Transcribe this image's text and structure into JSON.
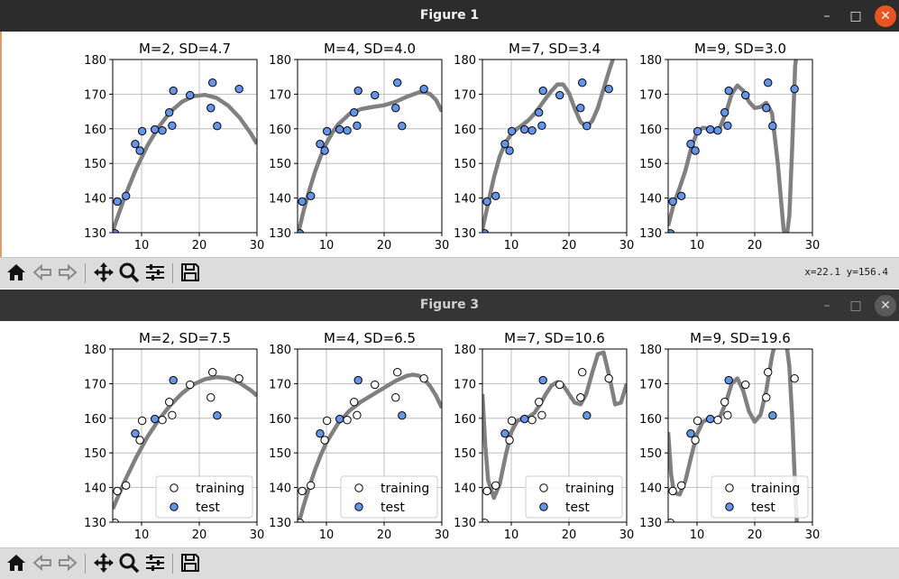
{
  "windows": [
    {
      "title": "Figure 1",
      "coord_readout": "x=22.1 y=156.4",
      "active": true
    },
    {
      "title": "Figure 3",
      "coord_readout": "",
      "active": false
    }
  ],
  "window_buttons": {
    "minimize": "–",
    "maximize": "□",
    "close": "✕"
  },
  "toolbar_icons": [
    "home-icon",
    "back-arrow-icon",
    "forward-arrow-icon",
    "pan-icon",
    "zoom-icon",
    "configure-icon",
    "save-icon"
  ],
  "colors": {
    "curve": "#808080",
    "test_fill": "#6495ED",
    "training_fill": "#ffffff",
    "marker_edge": "#000000",
    "grid": "#b0b0b0",
    "close_active": "#e95420"
  },
  "chart_data": [
    {
      "figure": 1,
      "panel": 1,
      "type": "scatter",
      "title": "M=2, SD=4.7",
      "xlim": [
        5,
        30
      ],
      "ylim": [
        130,
        180
      ],
      "xticks": [
        10,
        20,
        30
      ],
      "yticks": [
        130,
        140,
        150,
        160,
        170,
        180
      ],
      "grid": true,
      "legend": null,
      "series": [
        {
          "kind": "points",
          "style": "test",
          "x": [
            5.4,
            5.8,
            7.3,
            8.9,
            9.7,
            10.1,
            12.3,
            13.6,
            14.8,
            15.3,
            15.5,
            18.4,
            22.0,
            22.3,
            23.1,
            26.9
          ],
          "y": [
            129.8,
            139.0,
            140.6,
            155.6,
            153.7,
            159.3,
            159.8,
            159.5,
            164.7,
            160.9,
            171.0,
            169.7,
            166.0,
            173.3,
            160.8,
            171.5
          ]
        },
        {
          "kind": "curve",
          "x": [
            5,
            7,
            9,
            11,
            13,
            15,
            17,
            19,
            21,
            23,
            25,
            27,
            29,
            30
          ],
          "y": [
            130.5,
            140.0,
            148.2,
            155.1,
            160.6,
            164.9,
            167.8,
            169.4,
            169.8,
            168.9,
            166.7,
            163.2,
            158.5,
            155.6
          ]
        }
      ]
    },
    {
      "figure": 1,
      "panel": 2,
      "type": "scatter",
      "title": "M=4, SD=4.0",
      "xlim": [
        5,
        30
      ],
      "ylim": [
        130,
        180
      ],
      "xticks": [
        10,
        20,
        30
      ],
      "yticks": [
        130,
        140,
        150,
        160,
        170,
        180
      ],
      "grid": true,
      "legend": null,
      "series": [
        {
          "kind": "points",
          "style": "test",
          "x": [
            5.4,
            5.8,
            7.3,
            8.9,
            9.7,
            10.1,
            12.3,
            13.6,
            14.8,
            15.3,
            15.5,
            18.4,
            22.0,
            22.3,
            23.1,
            26.9
          ],
          "y": [
            129.8,
            139.0,
            140.6,
            155.6,
            153.7,
            159.3,
            159.8,
            159.5,
            164.7,
            160.9,
            171.0,
            169.7,
            166.0,
            173.3,
            160.8,
            171.5
          ]
        },
        {
          "kind": "curve",
          "x": [
            5,
            6,
            7,
            8,
            9,
            10,
            11,
            12,
            14,
            16,
            18,
            20,
            22,
            24,
            26,
            27,
            28,
            29,
            30
          ],
          "y": [
            129.0,
            136.0,
            142.0,
            147.5,
            152.0,
            155.8,
            158.8,
            161.2,
            164.3,
            165.7,
            166.3,
            166.8,
            167.8,
            169.3,
            170.5,
            170.6,
            170.0,
            168.3,
            165.0
          ]
        }
      ]
    },
    {
      "figure": 1,
      "panel": 3,
      "type": "scatter",
      "title": "M=7, SD=3.4",
      "xlim": [
        5,
        30
      ],
      "ylim": [
        130,
        180
      ],
      "xticks": [
        10,
        20,
        30
      ],
      "yticks": [
        130,
        140,
        150,
        160,
        170,
        180
      ],
      "grid": true,
      "legend": null,
      "series": [
        {
          "kind": "points",
          "style": "test",
          "x": [
            5.4,
            5.8,
            7.3,
            8.9,
            9.7,
            10.1,
            12.3,
            13.6,
            14.8,
            15.3,
            15.5,
            18.4,
            22.0,
            22.3,
            23.1,
            26.9
          ],
          "y": [
            129.8,
            139.0,
            140.6,
            155.6,
            153.7,
            159.3,
            159.8,
            159.5,
            164.7,
            160.9,
            171.0,
            169.7,
            166.0,
            173.3,
            160.8,
            171.5
          ]
        },
        {
          "kind": "curve",
          "x": [
            5,
            6,
            7,
            8,
            9,
            10,
            11,
            12,
            13,
            14,
            15,
            16,
            17,
            18,
            19,
            20,
            21,
            22,
            23,
            24,
            25,
            26,
            27,
            27.5,
            28
          ],
          "y": [
            131.0,
            138.5,
            146.0,
            152.0,
            156.0,
            158.5,
            160.0,
            161.2,
            162.5,
            164.3,
            166.5,
            168.8,
            171.0,
            172.8,
            172.8,
            170.3,
            165.8,
            162.0,
            160.6,
            162.2,
            166.0,
            171.5,
            177.0,
            179.5,
            182.0
          ]
        }
      ]
    },
    {
      "figure": 1,
      "panel": 4,
      "type": "scatter",
      "title": "M=9, SD=3.0",
      "xlim": [
        5,
        30
      ],
      "ylim": [
        130,
        180
      ],
      "xticks": [
        10,
        20,
        30
      ],
      "yticks": [
        130,
        140,
        150,
        160,
        170,
        180
      ],
      "grid": true,
      "legend": null,
      "series": [
        {
          "kind": "points",
          "style": "test",
          "x": [
            5.4,
            5.8,
            7.3,
            8.9,
            9.7,
            10.1,
            12.3,
            13.6,
            14.8,
            15.3,
            15.5,
            18.4,
            22.0,
            22.3,
            23.1,
            26.9
          ],
          "y": [
            129.8,
            139.0,
            140.6,
            155.6,
            153.7,
            159.3,
            159.8,
            159.5,
            164.7,
            160.9,
            171.0,
            169.7,
            166.0,
            173.3,
            160.8,
            171.5
          ]
        },
        {
          "kind": "curve",
          "x": [
            5,
            6,
            7,
            8,
            9,
            10,
            11,
            12,
            13,
            14,
            15,
            16,
            17,
            18,
            19,
            20,
            21,
            22,
            23,
            24,
            25,
            25.5,
            26,
            26.5,
            27,
            27.4
          ],
          "y": [
            132.0,
            138.5,
            143.0,
            148.0,
            154.5,
            159.0,
            160.3,
            160.0,
            159.3,
            160.5,
            164.5,
            170.0,
            172.5,
            171.0,
            167.8,
            166.0,
            166.3,
            167.5,
            164.5,
            150.0,
            131.0,
            128.0,
            135.0,
            155.0,
            178.0,
            184.0
          ]
        }
      ]
    },
    {
      "figure": 3,
      "panel": 1,
      "type": "scatter",
      "title": "M=2, SD=7.5",
      "xlim": [
        5,
        30
      ],
      "ylim": [
        130,
        180
      ],
      "xticks": [
        10,
        20,
        30
      ],
      "yticks": [
        130,
        140,
        150,
        160,
        170,
        180
      ],
      "grid": true,
      "legend": "lower-right",
      "series": [
        {
          "kind": "points",
          "style": "training",
          "name": "training",
          "x": [
            5.4,
            5.8,
            7.3,
            9.7,
            10.1,
            13.6,
            14.8,
            15.3,
            18.4,
            22.0,
            22.3,
            26.9
          ],
          "y": [
            129.8,
            139.0,
            140.6,
            153.7,
            159.3,
            159.5,
            164.7,
            160.9,
            169.7,
            166.0,
            173.3,
            171.5
          ]
        },
        {
          "kind": "points",
          "style": "test",
          "name": "test",
          "x": [
            8.9,
            12.3,
            15.5,
            23.1
          ],
          "y": [
            155.6,
            159.8,
            171.0,
            160.8
          ]
        },
        {
          "kind": "curve",
          "x": [
            5,
            7,
            9,
            11,
            13,
            15,
            17,
            19,
            21,
            23,
            25,
            27,
            29,
            30
          ],
          "y": [
            133.8,
            141.6,
            148.5,
            154.6,
            159.6,
            163.8,
            167.2,
            169.8,
            171.3,
            171.9,
            171.6,
            170.2,
            168.0,
            166.5
          ]
        }
      ]
    },
    {
      "figure": 3,
      "panel": 2,
      "type": "scatter",
      "title": "M=4, SD=6.5",
      "xlim": [
        5,
        30
      ],
      "ylim": [
        130,
        180
      ],
      "xticks": [
        10,
        20,
        30
      ],
      "yticks": [
        130,
        140,
        150,
        160,
        170,
        180
      ],
      "grid": true,
      "legend": "lower-right",
      "series": [
        {
          "kind": "points",
          "style": "training",
          "name": "training",
          "x": [
            5.4,
            5.8,
            7.3,
            9.7,
            10.1,
            13.6,
            14.8,
            15.3,
            18.4,
            22.0,
            22.3,
            26.9
          ],
          "y": [
            129.8,
            139.0,
            140.6,
            153.7,
            159.3,
            159.5,
            164.7,
            160.9,
            169.7,
            166.0,
            173.3,
            171.5
          ]
        },
        {
          "kind": "points",
          "style": "test",
          "name": "test",
          "x": [
            8.9,
            12.3,
            15.5,
            23.1
          ],
          "y": [
            155.6,
            159.8,
            171.0,
            160.8
          ]
        },
        {
          "kind": "curve",
          "x": [
            5,
            6,
            7,
            8,
            9,
            10,
            12,
            14,
            16,
            18,
            20,
            22,
            24,
            25,
            26,
            27,
            28,
            29,
            30
          ],
          "y": [
            128.5,
            134.5,
            140.0,
            145.0,
            149.3,
            153.0,
            158.5,
            162.2,
            164.8,
            166.8,
            168.8,
            170.8,
            172.3,
            172.6,
            172.3,
            171.2,
            169.2,
            166.5,
            163.0
          ]
        }
      ]
    },
    {
      "figure": 3,
      "panel": 3,
      "type": "scatter",
      "title": "M=7, SD=10.6",
      "xlim": [
        5,
        30
      ],
      "ylim": [
        130,
        180
      ],
      "xticks": [
        10,
        20,
        30
      ],
      "yticks": [
        130,
        140,
        150,
        160,
        170,
        180
      ],
      "grid": true,
      "legend": "lower-right",
      "series": [
        {
          "kind": "points",
          "style": "training",
          "name": "training",
          "x": [
            5.4,
            5.8,
            7.3,
            9.7,
            10.1,
            13.6,
            14.8,
            15.3,
            18.4,
            22.0,
            22.3,
            26.9
          ],
          "y": [
            129.8,
            139.0,
            140.6,
            153.7,
            159.3,
            159.5,
            164.7,
            160.9,
            169.7,
            166.0,
            173.3,
            171.5
          ]
        },
        {
          "kind": "points",
          "style": "test",
          "name": "test",
          "x": [
            8.9,
            12.3,
            15.5,
            23.1
          ],
          "y": [
            155.6,
            159.8,
            171.0,
            160.8
          ]
        },
        {
          "kind": "curve",
          "x": [
            5,
            5.5,
            6,
            7,
            8,
            9,
            10,
            11,
            12,
            13,
            14,
            15,
            16,
            17,
            18,
            19,
            20,
            21,
            22,
            23,
            24,
            25,
            26,
            27,
            28,
            29,
            30
          ],
          "y": [
            167.0,
            152.0,
            142.0,
            137.0,
            141.0,
            149.0,
            156.0,
            159.2,
            160.0,
            160.3,
            161.5,
            164.0,
            167.0,
            169.5,
            170.5,
            169.5,
            167.0,
            164.5,
            164.0,
            167.0,
            173.0,
            178.5,
            179.0,
            172.0,
            164.0,
            164.5,
            170.0
          ]
        }
      ]
    },
    {
      "figure": 3,
      "panel": 4,
      "type": "scatter",
      "title": "M=9, SD=19.6",
      "xlim": [
        5,
        30
      ],
      "ylim": [
        130,
        180
      ],
      "xticks": [
        10,
        20,
        30
      ],
      "yticks": [
        130,
        140,
        150,
        160,
        170,
        180
      ],
      "grid": true,
      "legend": "lower-right",
      "series": [
        {
          "kind": "points",
          "style": "training",
          "name": "training",
          "x": [
            5.4,
            5.8,
            7.3,
            9.7,
            10.1,
            13.6,
            14.8,
            15.3,
            18.4,
            22.0,
            22.3,
            26.9
          ],
          "y": [
            129.8,
            139.0,
            140.6,
            153.7,
            159.3,
            159.5,
            164.7,
            160.9,
            169.7,
            166.0,
            173.3,
            171.5
          ]
        },
        {
          "kind": "points",
          "style": "test",
          "name": "test",
          "x": [
            8.9,
            12.3,
            15.5,
            23.1
          ],
          "y": [
            155.6,
            159.8,
            171.0,
            160.8
          ]
        },
        {
          "kind": "curve",
          "x": [
            5,
            5.5,
            6,
            7,
            8,
            9,
            10,
            11,
            12,
            13,
            14,
            15,
            16,
            17,
            18,
            19,
            20,
            21,
            22,
            23,
            24,
            25,
            26,
            26.5,
            27,
            27.3,
            27.5
          ],
          "y": [
            156.0,
            144.0,
            138.5,
            138.0,
            142.0,
            149.0,
            155.5,
            159.0,
            159.8,
            159.5,
            160.5,
            164.5,
            170.0,
            171.5,
            168.0,
            162.0,
            159.0,
            161.0,
            168.0,
            178.0,
            185.0,
            188.0,
            175.0,
            160.0,
            140.0,
            130.0,
            120.0
          ]
        }
      ]
    }
  ]
}
